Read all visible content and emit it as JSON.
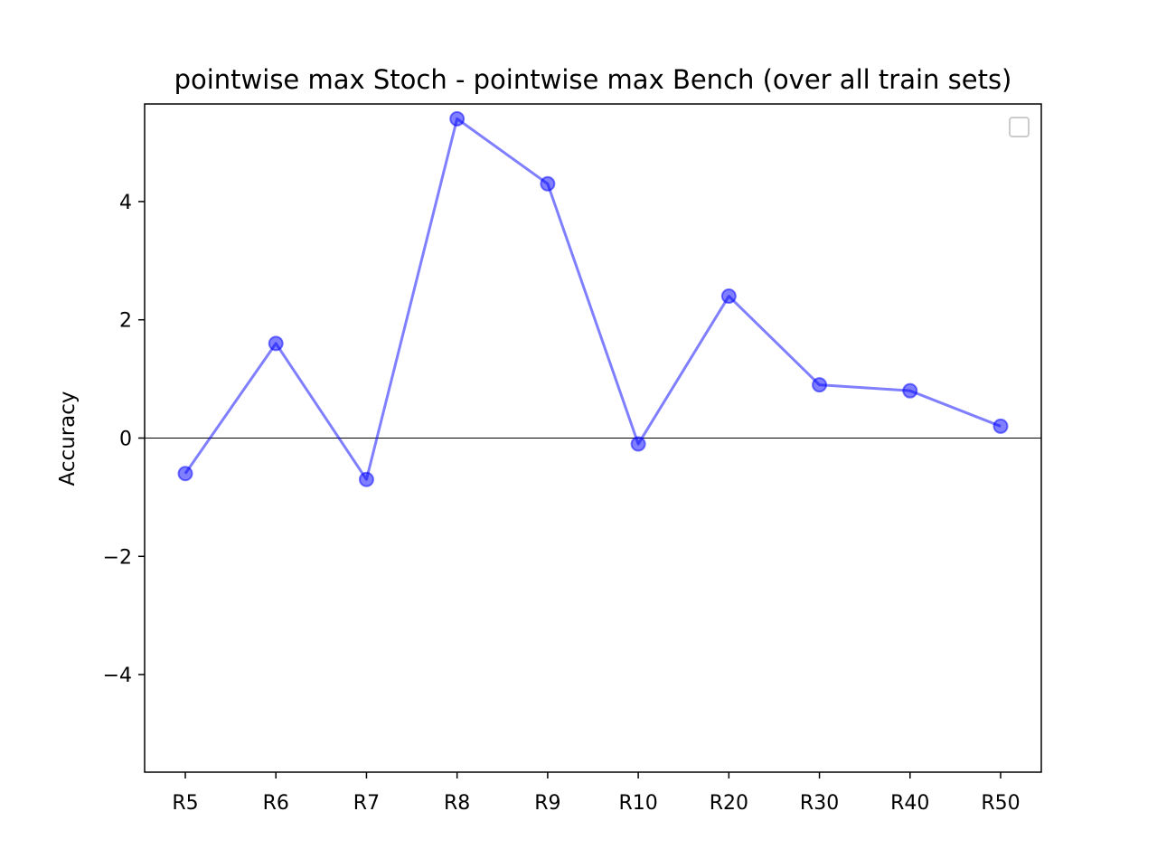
{
  "chart_data": {
    "type": "line",
    "title": "pointwise max Stoch - pointwise max Bench (over all train sets)",
    "xlabel": "",
    "ylabel": "Accuracy",
    "categories": [
      "R5",
      "R6",
      "R7",
      "R8",
      "R9",
      "R10",
      "R20",
      "R30",
      "R40",
      "R50"
    ],
    "series": [
      {
        "values": [
          -0.6,
          1.6,
          -0.7,
          5.4,
          4.3,
          -0.1,
          2.4,
          0.9,
          0.8,
          0.2
        ],
        "color": "#0000ff"
      }
    ],
    "ylim": [
      -5.65,
      5.65
    ],
    "yticks": [
      4,
      2,
      0,
      -2,
      -4
    ],
    "ytick_labels": [
      "4",
      "2",
      "0",
      "−2",
      "−4"
    ],
    "zero_line": true,
    "grid": false,
    "legend": "top-right (empty)"
  }
}
